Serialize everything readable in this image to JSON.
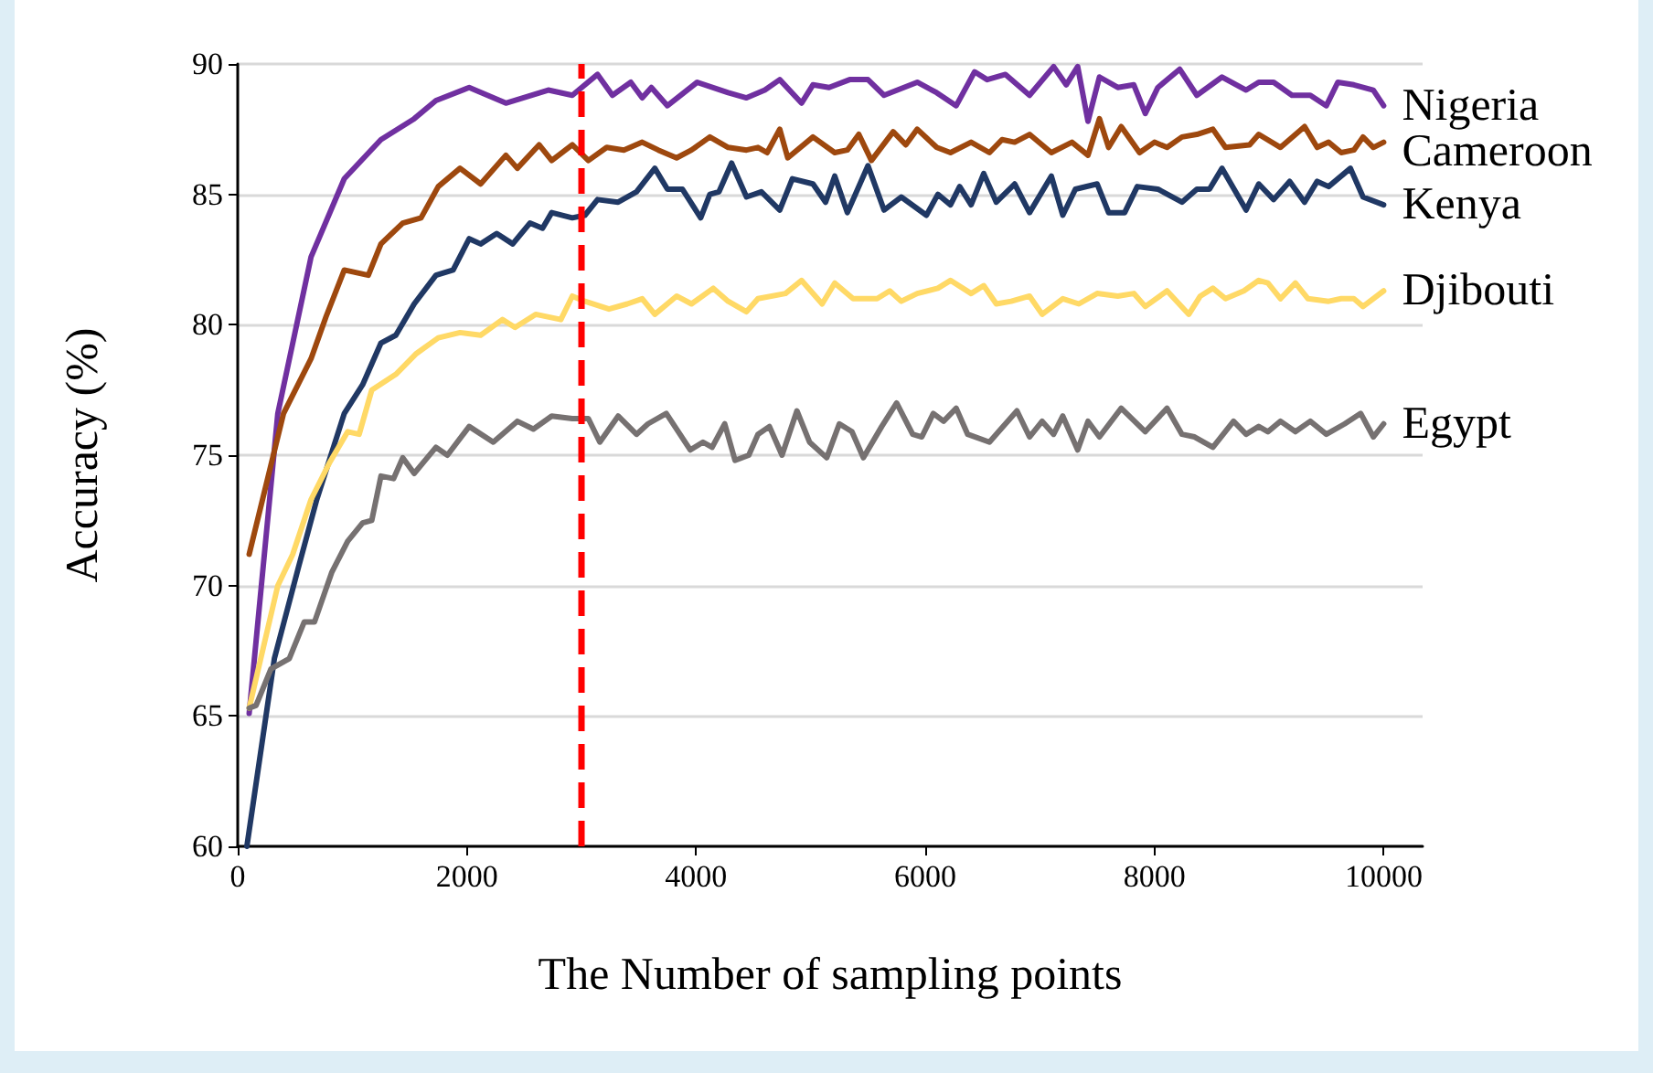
{
  "chart_data": {
    "type": "line",
    "xlabel": "The Number of sampling points",
    "ylabel": "Accuracy (%)",
    "xlim": [
      0,
      10340
    ],
    "xticks": [
      0,
      2000,
      4000,
      6000,
      8000,
      10000
    ],
    "ylim": [
      60,
      90
    ],
    "yticks": [
      60,
      65,
      70,
      75,
      80,
      85,
      90
    ],
    "grid": "y",
    "marker": "none",
    "line_style": "solid",
    "ref_lines": [
      {
        "axis": "x",
        "value": 3000,
        "color": "#ff0000",
        "line_style": "dashed"
      }
    ],
    "series": [
      {
        "name": "Nigeria",
        "color": "#7030a0",
        "x": [
          100,
          350,
          640,
          930,
          1250,
          1540,
          1730,
          2020,
          2340,
          2710,
          2920,
          3140,
          3270,
          3430,
          3530,
          3610,
          3750,
          4010,
          4280,
          4440,
          4600,
          4730,
          4920,
          5020,
          5160,
          5340,
          5500,
          5640,
          5930,
          6100,
          6270,
          6430,
          6540,
          6700,
          6910,
          7120,
          7230,
          7330,
          7420,
          7520,
          7680,
          7820,
          7920,
          8030,
          8220,
          8370,
          8590,
          8800,
          8910,
          9040,
          9200,
          9360,
          9500,
          9600,
          9740,
          9910,
          10000
        ],
        "values": [
          65.1,
          76.6,
          82.6,
          85.6,
          87.1,
          87.9,
          88.6,
          89.1,
          88.5,
          89.0,
          88.8,
          89.6,
          88.8,
          89.3,
          88.7,
          89.1,
          88.4,
          89.3,
          88.9,
          88.7,
          89.0,
          89.4,
          88.5,
          89.2,
          89.1,
          89.4,
          89.4,
          88.8,
          89.3,
          88.9,
          88.4,
          89.7,
          89.4,
          89.6,
          88.8,
          89.9,
          89.2,
          89.9,
          87.8,
          89.5,
          89.1,
          89.2,
          88.1,
          89.1,
          89.8,
          88.8,
          89.5,
          89.0,
          89.3,
          89.3,
          88.8,
          88.8,
          88.4,
          89.3,
          89.2,
          89.0,
          88.4
        ]
      },
      {
        "name": "Cameroon",
        "color": "#9e480e",
        "x": [
          100,
          400,
          640,
          770,
          930,
          1140,
          1250,
          1440,
          1600,
          1750,
          1940,
          2120,
          2340,
          2440,
          2630,
          2740,
          2920,
          3060,
          3220,
          3370,
          3530,
          3670,
          3830,
          3960,
          4120,
          4280,
          4440,
          4540,
          4620,
          4730,
          4800,
          5020,
          5210,
          5320,
          5420,
          5530,
          5720,
          5830,
          5930,
          6100,
          6220,
          6400,
          6560,
          6670,
          6780,
          6910,
          7100,
          7280,
          7420,
          7520,
          7600,
          7710,
          7870,
          8000,
          8110,
          8240,
          8370,
          8510,
          8620,
          8830,
          8910,
          9100,
          9310,
          9420,
          9520,
          9630,
          9740,
          9820,
          9910,
          10000
        ],
        "values": [
          71.2,
          76.6,
          78.7,
          80.3,
          82.1,
          81.9,
          83.1,
          83.9,
          84.1,
          85.3,
          86.0,
          85.4,
          86.5,
          86.0,
          86.9,
          86.3,
          86.9,
          86.3,
          86.8,
          86.7,
          87.0,
          86.7,
          86.4,
          86.7,
          87.2,
          86.8,
          86.7,
          86.8,
          86.6,
          87.5,
          86.4,
          87.2,
          86.6,
          86.7,
          87.3,
          86.3,
          87.4,
          86.9,
          87.5,
          86.8,
          86.6,
          87.0,
          86.6,
          87.1,
          87.0,
          87.3,
          86.6,
          87.0,
          86.5,
          87.9,
          86.8,
          87.6,
          86.6,
          87.0,
          86.8,
          87.2,
          87.3,
          87.5,
          86.8,
          86.9,
          87.3,
          86.8,
          87.6,
          86.8,
          87.0,
          86.6,
          86.7,
          87.2,
          86.8,
          87.0
        ]
      },
      {
        "name": "Kenya",
        "color": "#203864",
        "x": [
          80,
          320,
          530,
          690,
          930,
          1090,
          1250,
          1380,
          1540,
          1730,
          1880,
          2020,
          2120,
          2260,
          2400,
          2550,
          2660,
          2740,
          2920,
          3030,
          3140,
          3320,
          3480,
          3640,
          3750,
          3880,
          4040,
          4120,
          4200,
          4310,
          4440,
          4570,
          4730,
          4840,
          5020,
          5130,
          5210,
          5320,
          5500,
          5640,
          5790,
          6010,
          6110,
          6220,
          6300,
          6400,
          6510,
          6620,
          6780,
          6910,
          7100,
          7200,
          7310,
          7500,
          7600,
          7740,
          7850,
          8030,
          8240,
          8370,
          8480,
          8590,
          8800,
          8910,
          9040,
          9180,
          9310,
          9420,
          9520,
          9710,
          9820,
          10000
        ],
        "values": [
          60.0,
          67.2,
          70.7,
          73.3,
          76.6,
          77.7,
          79.3,
          79.6,
          80.8,
          81.9,
          82.1,
          83.3,
          83.1,
          83.5,
          83.1,
          83.9,
          83.7,
          84.3,
          84.1,
          84.2,
          84.8,
          84.7,
          85.1,
          86.0,
          85.2,
          85.2,
          84.1,
          85.0,
          85.1,
          86.2,
          84.9,
          85.1,
          84.4,
          85.6,
          85.4,
          84.7,
          85.7,
          84.3,
          86.1,
          84.4,
          84.9,
          84.2,
          85.0,
          84.6,
          85.3,
          84.6,
          85.8,
          84.7,
          85.4,
          84.3,
          85.7,
          84.2,
          85.2,
          85.4,
          84.3,
          84.3,
          85.3,
          85.2,
          84.7,
          85.2,
          85.2,
          86.0,
          84.4,
          85.4,
          84.8,
          85.5,
          84.7,
          85.5,
          85.3,
          86.0,
          84.9,
          84.6
        ]
      },
      {
        "name": "Djibouti",
        "color": "#ffd966",
        "x": [
          100,
          350,
          480,
          640,
          800,
          960,
          1060,
          1170,
          1380,
          1560,
          1750,
          1940,
          2120,
          2310,
          2420,
          2600,
          2820,
          2920,
          3030,
          3240,
          3400,
          3530,
          3640,
          3830,
          3960,
          4150,
          4280,
          4440,
          4540,
          4780,
          4920,
          5100,
          5210,
          5370,
          5580,
          5690,
          5790,
          5930,
          6110,
          6220,
          6400,
          6510,
          6620,
          6750,
          6910,
          7020,
          7200,
          7340,
          7500,
          7680,
          7820,
          7920,
          8110,
          8300,
          8400,
          8510,
          8620,
          8780,
          8910,
          8990,
          9100,
          9230,
          9340,
          9520,
          9630,
          9740,
          9820,
          10000
        ],
        "values": [
          65.3,
          70.0,
          71.2,
          73.3,
          74.7,
          75.9,
          75.8,
          77.5,
          78.1,
          78.9,
          79.5,
          79.7,
          79.6,
          80.2,
          79.9,
          80.4,
          80.2,
          81.1,
          80.9,
          80.6,
          80.8,
          81.0,
          80.4,
          81.1,
          80.8,
          81.4,
          80.9,
          80.5,
          81.0,
          81.2,
          81.7,
          80.8,
          81.6,
          81.0,
          81.0,
          81.3,
          80.9,
          81.2,
          81.4,
          81.7,
          81.2,
          81.5,
          80.8,
          80.9,
          81.1,
          80.4,
          81.0,
          80.8,
          81.2,
          81.1,
          81.2,
          80.7,
          81.3,
          80.4,
          81.1,
          81.4,
          81.0,
          81.3,
          81.7,
          81.6,
          81.0,
          81.6,
          81.0,
          80.9,
          81.0,
          81.0,
          80.7,
          81.3
        ]
      },
      {
        "name": "Egypt",
        "color": "#767171",
        "x": [
          100,
          160,
          290,
          450,
          580,
          670,
          820,
          960,
          1090,
          1170,
          1250,
          1360,
          1440,
          1540,
          1730,
          1830,
          2020,
          2230,
          2440,
          2580,
          2740,
          2920,
          3060,
          3160,
          3320,
          3480,
          3580,
          3740,
          3950,
          4060,
          4140,
          4250,
          4340,
          4460,
          4540,
          4640,
          4750,
          4880,
          4990,
          5140,
          5250,
          5360,
          5460,
          5620,
          5750,
          5890,
          5970,
          6070,
          6160,
          6270,
          6370,
          6560,
          6640,
          6800,
          6910,
          7020,
          7120,
          7200,
          7330,
          7420,
          7520,
          7710,
          7920,
          8110,
          8240,
          8350,
          8510,
          8690,
          8800,
          8910,
          8990,
          9100,
          9230,
          9360,
          9500,
          9660,
          9800,
          9910,
          10000
        ],
        "values": [
          65.3,
          65.4,
          66.8,
          67.2,
          68.6,
          68.6,
          70.5,
          71.7,
          72.4,
          72.5,
          74.2,
          74.1,
          74.9,
          74.3,
          75.3,
          75.0,
          76.1,
          75.5,
          76.3,
          76.0,
          76.5,
          76.4,
          76.4,
          75.5,
          76.5,
          75.8,
          76.2,
          76.6,
          75.2,
          75.5,
          75.3,
          76.2,
          74.8,
          75.0,
          75.8,
          76.1,
          75.0,
          76.7,
          75.5,
          74.9,
          76.2,
          75.9,
          74.9,
          76.1,
          77.0,
          75.8,
          75.7,
          76.6,
          76.3,
          76.8,
          75.8,
          75.5,
          75.9,
          76.7,
          75.7,
          76.3,
          75.8,
          76.5,
          75.2,
          76.3,
          75.7,
          76.8,
          75.9,
          76.8,
          75.8,
          75.7,
          75.3,
          76.3,
          75.8,
          76.1,
          75.9,
          76.3,
          75.9,
          76.3,
          75.8,
          76.2,
          76.6,
          75.7,
          76.2
        ]
      }
    ]
  }
}
